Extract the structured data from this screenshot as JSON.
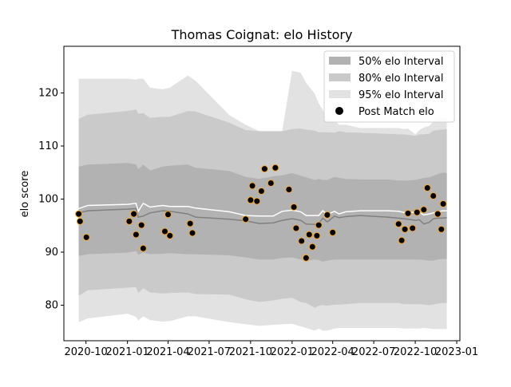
{
  "chart_data": {
    "type": "area",
    "title": "Thomas Coignat: elo History",
    "xlabel": "",
    "ylabel": "elo score",
    "xlim": [
      "2020-08-13",
      "2023-01-08"
    ],
    "ylim": [
      73.3,
      128.8
    ],
    "yticks": [
      80,
      90,
      100,
      110,
      120
    ],
    "xticks": [
      {
        "date": "2020-10-01",
        "label": "2020-10"
      },
      {
        "date": "2021-01-01",
        "label": "2021-01"
      },
      {
        "date": "2021-04-01",
        "label": "2021-04"
      },
      {
        "date": "2021-07-01",
        "label": "2021-07"
      },
      {
        "date": "2021-10-01",
        "label": "2021-10"
      },
      {
        "date": "2022-01-01",
        "label": "2022-01"
      },
      {
        "date": "2022-04-01",
        "label": "2022-04"
      },
      {
        "date": "2022-07-01",
        "label": "2022-07"
      },
      {
        "date": "2022-10-01",
        "label": "2022-10"
      },
      {
        "date": "2023-01-01",
        "label": "2023-01"
      }
    ],
    "legend": {
      "placement": "top-right",
      "entries": [
        {
          "label": "50% elo Interval",
          "kind": "band",
          "color": "#b2b2b2"
        },
        {
          "label": "80% elo Interval",
          "kind": "band",
          "color": "#cacaca"
        },
        {
          "label": "95% elo Interval",
          "kind": "band",
          "color": "#e2e2e2"
        },
        {
          "label": "Post Match elo",
          "kind": "marker",
          "color": "#000000"
        }
      ]
    },
    "colors": {
      "band95": "#e2e2e2",
      "band80": "#cacaca",
      "band50": "#b2b2b2",
      "median_line": "#808080",
      "mean_line": "#ffffff",
      "marker_fill": "#000000",
      "marker_edge": "#f5a623"
    },
    "bands": {
      "dates": [
        "2020-09-15",
        "2020-10-05",
        "2021-01-01",
        "2021-01-20",
        "2021-01-25",
        "2021-02-05",
        "2021-02-20",
        "2021-03-20",
        "2021-04-05",
        "2021-05-15",
        "2021-06-01",
        "2021-08-15",
        "2021-09-20",
        "2021-10-20",
        "2021-11-20",
        "2021-12-10",
        "2022-01-01",
        "2022-01-20",
        "2022-02-01",
        "2022-02-20",
        "2022-03-01",
        "2022-03-10",
        "2022-03-20",
        "2022-04-05",
        "2022-04-15",
        "2022-04-30",
        "2022-06-01",
        "2022-08-01",
        "2022-08-25",
        "2022-09-05",
        "2022-09-15",
        "2022-10-01",
        "2022-10-10",
        "2022-10-20",
        "2022-11-01",
        "2022-11-10",
        "2022-11-20",
        "2022-12-01",
        "2022-12-10"
      ],
      "p95_high": [
        122.7,
        122.7,
        122.7,
        122.5,
        122.7,
        122.7,
        121.0,
        120.7,
        121.0,
        123.3,
        122.3,
        115.8,
        114.0,
        112.8,
        112.8,
        112.8,
        124.2,
        123.8,
        121.9,
        119.9,
        118.0,
        116.8,
        115.0,
        114.8,
        114.0,
        114.0,
        113.4,
        113.4,
        113.4,
        113.2,
        113.3,
        112.2,
        113.0,
        113.5,
        113.8,
        114.6,
        115.2,
        115.4,
        115.3
      ],
      "p80_high": [
        115.1,
        115.9,
        116.6,
        116.9,
        116.1,
        116.2,
        115.3,
        115.5,
        115.5,
        116.6,
        116.5,
        114.4,
        113.0,
        112.8,
        112.8,
        112.8,
        113.2,
        113.3,
        113.1,
        112.9,
        112.6,
        112.6,
        112.6,
        112.5,
        112.8,
        112.6,
        112.5,
        112.3,
        112.2,
        112.2,
        112.1,
        111.9,
        112.2,
        112.2,
        112.3,
        112.9,
        113.0,
        113.1,
        113.2
      ],
      "p50_high": [
        106.1,
        106.5,
        106.8,
        106.5,
        105.6,
        106.5,
        105.4,
        106.1,
        106.3,
        106.5,
        105.9,
        105.3,
        104.2,
        103.8,
        104.3,
        104.5,
        104.9,
        104.4,
        104.1,
        103.6,
        103.8,
        103.6,
        103.6,
        104.2,
        104.0,
        103.8,
        103.7,
        103.7,
        103.5,
        103.5,
        103.5,
        103.6,
        103.8,
        104.0,
        104.1,
        104.4,
        104.7,
        105.0,
        104.9
      ],
      "p50_low": [
        89.3,
        89.6,
        89.9,
        90.2,
        89.5,
        89.9,
        89.6,
        89.7,
        89.8,
        89.6,
        89.6,
        89.4,
        89.0,
        88.6,
        88.6,
        88.9,
        89.0,
        88.6,
        88.4,
        88.6,
        88.5,
        88.2,
        88.4,
        88.6,
        88.6,
        88.6,
        88.6,
        88.6,
        88.6,
        88.6,
        88.6,
        88.6,
        88.6,
        88.5,
        88.4,
        88.4,
        88.6,
        88.7,
        88.7
      ],
      "p80_low": [
        81.8,
        82.8,
        83.3,
        83.4,
        82.3,
        83.2,
        82.4,
        82.2,
        82.3,
        82.4,
        82.1,
        82.0,
        81.1,
        80.6,
        80.9,
        81.2,
        81.4,
        80.6,
        80.4,
        79.5,
        79.9,
        80.0,
        79.9,
        80.1,
        80.1,
        80.2,
        80.4,
        80.4,
        80.4,
        80.2,
        80.2,
        80.2,
        80.2,
        80.1,
        80.0,
        80.1,
        80.3,
        80.4,
        80.4
      ],
      "p95_low": [
        76.8,
        77.5,
        78.4,
        77.8,
        77.1,
        77.9,
        77.2,
        76.9,
        77.0,
        77.9,
        77.9,
        76.8,
        76.4,
        76.1,
        76.3,
        76.4,
        76.5,
        76.0,
        75.7,
        75.2,
        75.6,
        75.2,
        75.2,
        75.6,
        75.7,
        75.7,
        75.7,
        75.7,
        75.7,
        75.6,
        75.6,
        75.6,
        75.6,
        75.7,
        75.6,
        75.5,
        75.5,
        75.5,
        75.5
      ],
      "median": [
        97.4,
        97.8,
        98.1,
        98.2,
        96.6,
        96.8,
        97.4,
        97.8,
        97.7,
        97.2,
        96.6,
        96.2,
        95.9,
        95.4,
        95.5,
        96.0,
        96.3,
        96.0,
        95.3,
        95.2,
        95.4,
        96.4,
        95.7,
        96.8,
        96.5,
        96.7,
        96.9,
        96.6,
        96.4,
        96.3,
        96.2,
        96.0,
        96.1,
        95.3,
        95.6,
        96.3,
        96.4,
        96.4,
        96.5
      ],
      "mean": [
        98.2,
        98.8,
        99.0,
        99.2,
        97.7,
        99.2,
        98.5,
        98.8,
        98.6,
        98.6,
        98.3,
        97.6,
        96.9,
        96.8,
        96.8,
        97.7,
        97.9,
        97.6,
        96.9,
        96.9,
        96.9,
        97.8,
        97.1,
        97.7,
        97.2,
        97.6,
        97.8,
        97.8,
        97.7,
        97.5,
        97.5,
        97.5,
        97.5,
        97.0,
        97.2,
        97.4,
        97.6,
        97.8,
        97.8
      ]
    },
    "series": [
      {
        "kind": "markers",
        "dates": [
          "2020-09-15",
          "2020-09-18",
          "2020-10-02",
          "2021-01-05",
          "2021-01-15",
          "2021-01-20",
          "2021-02-01",
          "2021-02-05",
          "2021-03-25",
          "2021-04-01",
          "2021-04-05",
          "2021-05-20",
          "2021-05-25",
          "2021-09-20",
          "2021-10-01",
          "2021-10-05",
          "2021-10-15",
          "2021-10-25",
          "2021-11-01",
          "2021-11-15",
          "2021-11-25",
          "2021-12-25",
          "2022-01-05",
          "2022-01-10",
          "2022-01-22",
          "2022-02-01",
          "2022-02-08",
          "2022-02-15",
          "2022-02-25",
          "2022-03-01",
          "2022-03-20",
          "2022-04-01",
          "2022-08-25",
          "2022-09-01",
          "2022-09-08",
          "2022-09-15",
          "2022-09-25",
          "2022-10-05",
          "2022-10-20",
          "2022-10-28",
          "2022-11-10",
          "2022-11-20",
          "2022-11-28",
          "2022-12-02"
        ],
        "values": [
          97.2,
          95.8,
          92.8,
          95.8,
          97.2,
          93.3,
          95.1,
          90.7,
          93.9,
          97.1,
          93.1,
          95.4,
          93.6,
          96.2,
          99.8,
          102.5,
          99.6,
          101.5,
          105.7,
          103.0,
          105.9,
          101.8,
          98.5,
          94.5,
          92.1,
          88.9,
          93.3,
          91.0,
          93.1,
          95.1,
          97.0,
          93.7,
          95.3,
          92.2,
          94.3,
          97.3,
          94.5,
          97.5,
          98.0,
          102.1,
          100.6,
          97.2,
          94.3,
          99.1
        ]
      }
    ]
  }
}
